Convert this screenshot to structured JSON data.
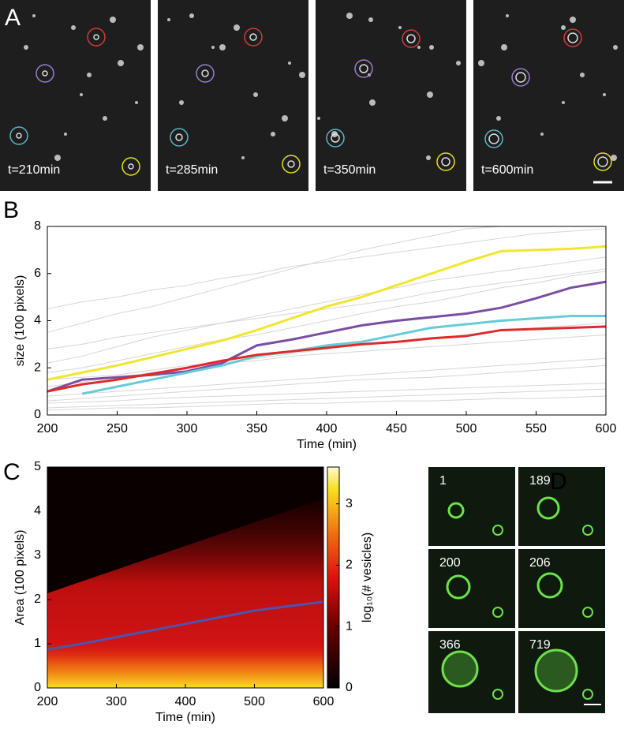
{
  "panels": {
    "A": {
      "label": "A",
      "frames": [
        "t=210min",
        "t=285min",
        "t=350min",
        "t=600min"
      ]
    },
    "D": {
      "label": "D",
      "frames": [
        "1",
        "189",
        "200",
        "206",
        "366",
        "719"
      ]
    }
  },
  "chart_data": [
    {
      "type": "line",
      "panel_label": "B",
      "xlabel": "Time (min)",
      "ylabel": "size (100 pixels)",
      "x": [
        200,
        225,
        250,
        275,
        300,
        325,
        350,
        375,
        400,
        425,
        450,
        475,
        500,
        525,
        550,
        575,
        600
      ],
      "xlim": [
        200,
        600
      ],
      "ylim": [
        0,
        8
      ],
      "xticks": [
        200,
        250,
        300,
        350,
        400,
        450,
        500,
        550,
        600
      ],
      "yticks": [
        0,
        2,
        4,
        6,
        8
      ],
      "grid": false,
      "series": [
        {
          "color": "#d6d6d6",
          "values": [
            0.3,
            0.35,
            0.4,
            0.45,
            0.5,
            0.55,
            0.6,
            0.65,
            0.7,
            0.75,
            0.8,
            0.85,
            0.9,
            0.95,
            1.0,
            1.05,
            1.1
          ]
        },
        {
          "color": "#d6d6d6",
          "values": [
            0.6,
            0.7,
            0.8,
            0.9,
            1.0,
            1.1,
            1.2,
            1.3,
            1.4,
            1.5,
            1.55,
            1.6,
            1.7,
            1.8,
            1.9,
            2.0,
            2.1
          ]
        },
        {
          "color": "#d6d6d6",
          "values": [
            1.2,
            1.4,
            1.6,
            1.8,
            2.0,
            2.2,
            2.4,
            2.6,
            2.8,
            3.0,
            3.1,
            3.2,
            3.4,
            3.6,
            3.7,
            3.8,
            3.9
          ]
        },
        {
          "color": "#d6d6d6",
          "values": [
            2.2,
            2.5,
            2.9,
            3.3,
            3.6,
            3.9,
            4.2,
            4.5,
            4.8,
            5.1,
            5.4,
            5.7,
            5.9,
            6.1,
            6.3,
            6.5,
            6.7
          ]
        },
        {
          "color": "#d6d6d6",
          "values": [
            3.5,
            3.9,
            4.3,
            4.6,
            5.0,
            5.4,
            5.8,
            6.2,
            6.6,
            7.0,
            7.3,
            7.6,
            7.9,
            8.0,
            null,
            null,
            null
          ]
        },
        {
          "color": "#d6d6d6",
          "values": [
            0.8,
            0.9,
            1.0,
            1.1,
            1.2,
            1.3,
            1.4,
            1.5,
            1.6,
            1.7,
            1.8,
            1.9,
            2.0,
            2.1,
            2.2,
            2.3,
            2.4
          ]
        },
        {
          "color": "#d6d6d6",
          "values": [
            0.5,
            0.55,
            0.6,
            0.7,
            0.75,
            0.8,
            0.85,
            0.9,
            0.95,
            1.0,
            1.05,
            1.1,
            1.15,
            1.2,
            1.25,
            1.3,
            1.35
          ]
        },
        {
          "color": "#d6d6d6",
          "values": [
            1.8,
            2.0,
            2.3,
            2.6,
            2.9,
            3.2,
            3.4,
            3.7,
            4.0,
            4.3,
            4.6,
            4.8,
            5.1,
            5.4,
            5.6,
            5.9,
            6.1
          ]
        },
        {
          "color": "#d6d6d6",
          "values": [
            4.5,
            4.8,
            5.0,
            5.3,
            5.5,
            5.8,
            6.0,
            6.3,
            6.5,
            6.7,
            6.9,
            7.1,
            7.3,
            7.5,
            7.7,
            7.8,
            7.9
          ]
        },
        {
          "color": "#d6d6d6",
          "values": [
            0.2,
            0.25,
            0.3,
            0.3,
            0.35,
            0.4,
            0.45,
            0.5,
            0.5,
            0.55,
            0.6,
            0.6,
            0.65,
            0.7,
            0.7,
            0.75,
            0.8
          ]
        },
        {
          "color": "#d6d6d6",
          "values": [
            1.5,
            1.6,
            1.7,
            1.9,
            2.1,
            2.2,
            2.3,
            2.5,
            2.6,
            2.7,
            2.8,
            2.9,
            3.0,
            3.1,
            3.2,
            3.3,
            3.4
          ]
        },
        {
          "color": "#d6d6d6",
          "values": [
            2.8,
            3.0,
            3.3,
            3.5,
            3.7,
            3.9,
            4.1,
            4.3,
            4.5,
            4.7,
            4.9,
            5.2,
            5.4,
            5.6,
            5.8,
            6.0,
            6.2
          ]
        },
        {
          "color": "#f0e62e",
          "values": [
            1.5,
            1.8,
            2.1,
            2.45,
            2.8,
            3.15,
            3.6,
            4.1,
            4.6,
            5.0,
            5.5,
            6.0,
            6.5,
            6.95,
            7.0,
            7.05,
            7.15
          ]
        },
        {
          "color": "#7a4fa3",
          "values": [
            1.0,
            1.5,
            1.6,
            1.7,
            1.85,
            2.2,
            2.95,
            3.2,
            3.5,
            3.8,
            4.0,
            4.15,
            4.3,
            4.55,
            4.95,
            5.4,
            5.65
          ]
        },
        {
          "color": "#67cbd8",
          "values": [
            null,
            0.9,
            1.2,
            1.5,
            1.8,
            2.1,
            2.5,
            2.7,
            2.95,
            3.1,
            3.4,
            3.7,
            3.85,
            4.0,
            4.1,
            4.2,
            4.2
          ]
        },
        {
          "color": "#e02a2a",
          "values": [
            1.0,
            1.3,
            1.5,
            1.75,
            2.0,
            2.3,
            2.55,
            2.7,
            2.85,
            3.0,
            3.1,
            3.25,
            3.35,
            3.6,
            3.65,
            3.7,
            3.75
          ]
        }
      ]
    },
    {
      "type": "heatmap",
      "panel_label": "C",
      "xlabel": "Time (min)",
      "ylabel": "Area (100 pixels)",
      "x": [
        200,
        250,
        300,
        350,
        400,
        450,
        500,
        550,
        600
      ],
      "xlim": [
        200,
        600
      ],
      "ylim": [
        0,
        5
      ],
      "xticks": [
        200,
        300,
        400,
        500,
        600
      ],
      "yticks": [
        0,
        1,
        2,
        3,
        4,
        5
      ],
      "grid": false,
      "series": [
        {
          "color": "#4a55b0",
          "values": [
            0.87,
            1.0,
            1.15,
            1.3,
            1.45,
            1.6,
            1.75,
            1.85,
            1.95
          ]
        }
      ],
      "colorbar": {
        "label": "log₁₀(# vesicles)",
        "lim": [
          0,
          3.6
        ],
        "ticks": [
          0,
          1,
          2,
          3
        ]
      }
    }
  ]
}
